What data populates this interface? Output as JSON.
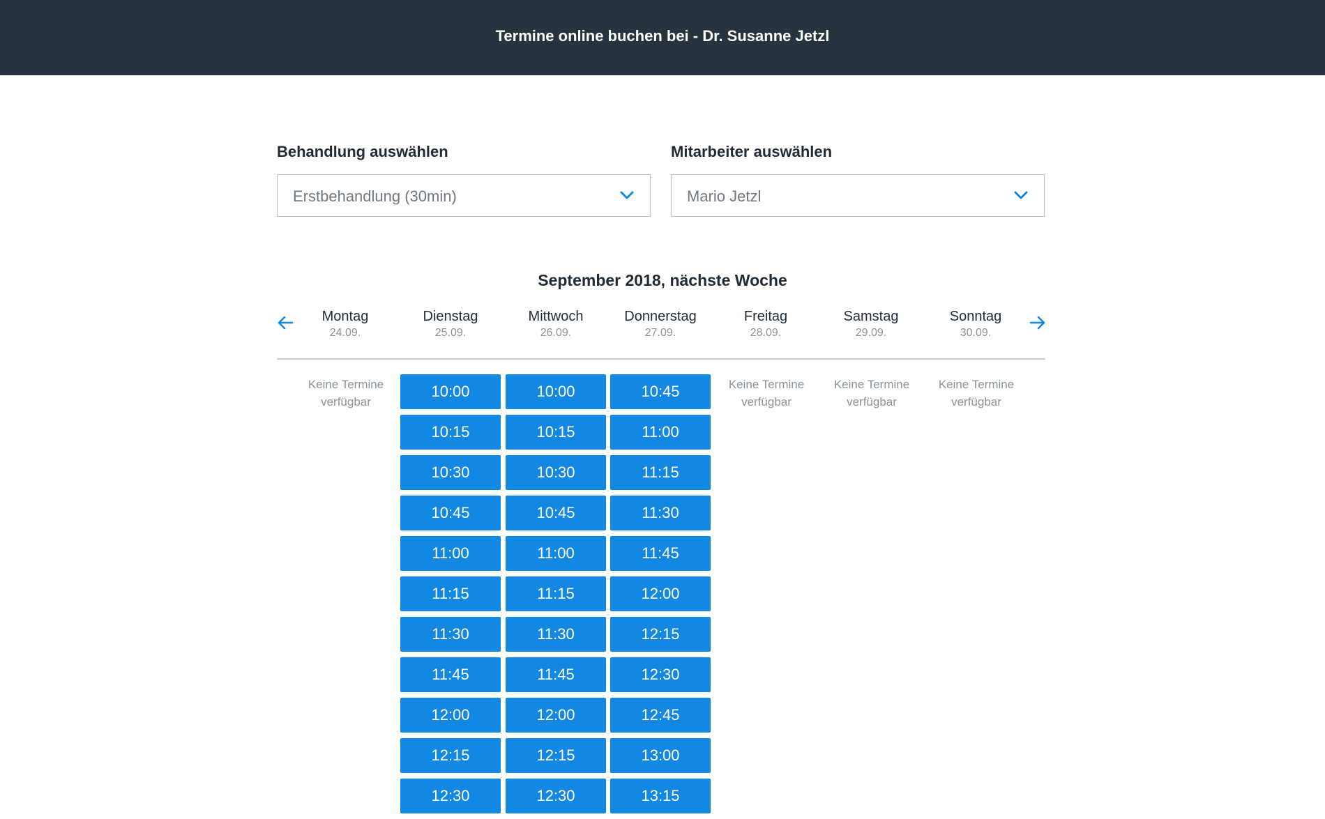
{
  "header": {
    "title": "Termine online buchen bei - Dr. Susanne Jetzl"
  },
  "treatment": {
    "label": "Behandlung auswählen",
    "value": "Erstbehandlung (30min)"
  },
  "staff": {
    "label": "Mitarbeiter auswählen",
    "value": "Mario Jetzl"
  },
  "calendar": {
    "title": "September 2018, nächste Woche",
    "no_slots_line1": "Keine Termine",
    "no_slots_line2": "verfügbar",
    "days": [
      {
        "name": "Montag",
        "date": "24.09.",
        "slots": []
      },
      {
        "name": "Dienstag",
        "date": "25.09.",
        "slots": [
          "10:00",
          "10:15",
          "10:30",
          "10:45",
          "11:00",
          "11:15",
          "11:30",
          "11:45",
          "12:00",
          "12:15",
          "12:30"
        ]
      },
      {
        "name": "Mittwoch",
        "date": "26.09.",
        "slots": [
          "10:00",
          "10:15",
          "10:30",
          "10:45",
          "11:00",
          "11:15",
          "11:30",
          "11:45",
          "12:00",
          "12:15",
          "12:30"
        ]
      },
      {
        "name": "Donnerstag",
        "date": "27.09.",
        "slots": [
          "10:45",
          "11:00",
          "11:15",
          "11:30",
          "11:45",
          "12:00",
          "12:15",
          "12:30",
          "12:45",
          "13:00",
          "13:15"
        ]
      },
      {
        "name": "Freitag",
        "date": "28.09.",
        "slots": []
      },
      {
        "name": "Samstag",
        "date": "29.09.",
        "slots": []
      },
      {
        "name": "Sonntag",
        "date": "30.09.",
        "slots": []
      }
    ]
  },
  "colors": {
    "header_bg": "#27343f",
    "accent": "#1388e3"
  },
  "icons": {
    "prev": "arrow-left-icon",
    "next": "arrow-right-icon",
    "dropdown": "chevron-down-icon"
  }
}
